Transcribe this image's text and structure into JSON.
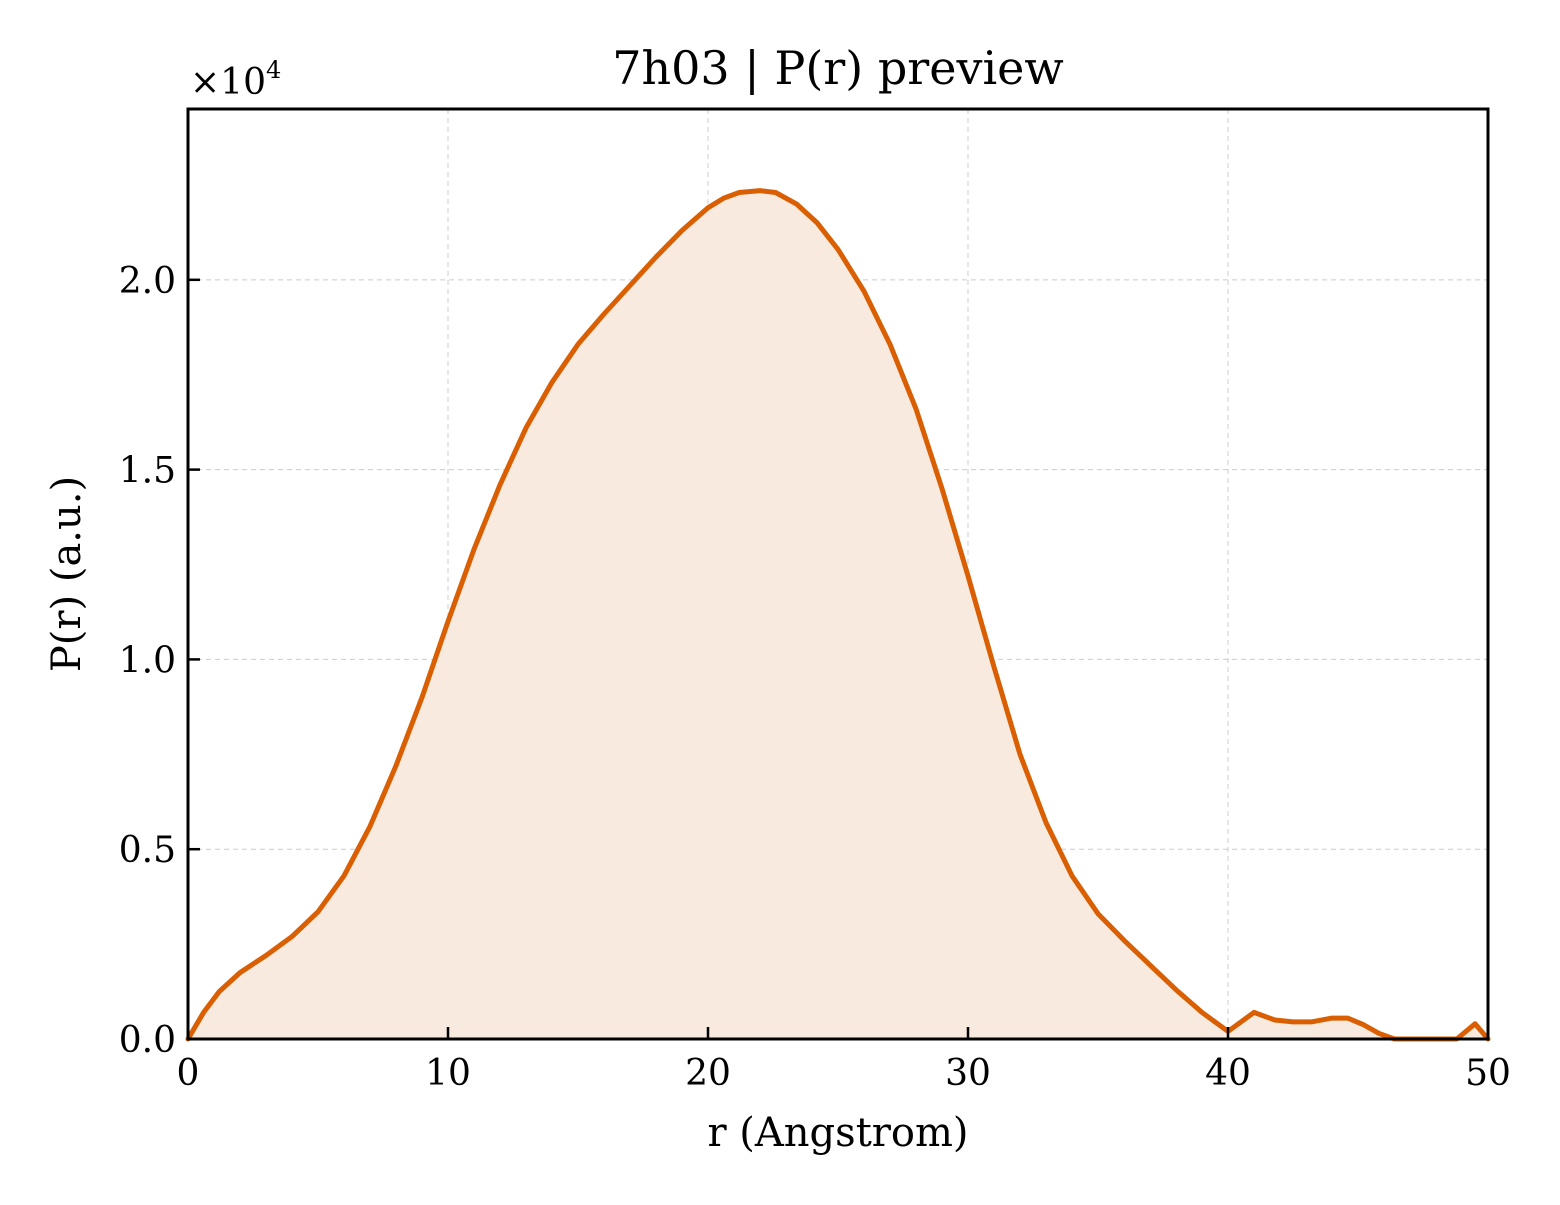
{
  "chart_data": {
    "type": "area",
    "title": "7h03 | P(r) preview",
    "xlabel": "r (Angstrom)",
    "ylabel": "P(r) (a.u.)",
    "y_multiplier_text": "×10",
    "y_multiplier_exponent": "4",
    "xlim": [
      0,
      50
    ],
    "ylim": [
      0,
      24500
    ],
    "grid": true,
    "line_color": "#d95f02",
    "fill_color": "#f9eadf",
    "x_ticks": [
      {
        "value": 0,
        "label": "0"
      },
      {
        "value": 10,
        "label": "10"
      },
      {
        "value": 20,
        "label": "20"
      },
      {
        "value": 30,
        "label": "30"
      },
      {
        "value": 40,
        "label": "40"
      },
      {
        "value": 50,
        "label": "50"
      }
    ],
    "y_ticks": [
      {
        "value": 0,
        "label": "0.0"
      },
      {
        "value": 5000,
        "label": "0.5"
      },
      {
        "value": 10000,
        "label": "1.0"
      },
      {
        "value": 15000,
        "label": "1.5"
      },
      {
        "value": 20000,
        "label": "2.0"
      }
    ],
    "series": [
      {
        "x": [
          0,
          0.6,
          1.2,
          2,
          3,
          4,
          5,
          6,
          7,
          8,
          9,
          10,
          11,
          12,
          13,
          14,
          15,
          16,
          17,
          18,
          19,
          20,
          20.6,
          21.2,
          22,
          22.6,
          23.4,
          24.2,
          25,
          26,
          27,
          28,
          29,
          30,
          31,
          32,
          33,
          34,
          35,
          36,
          37,
          38,
          39,
          40,
          41,
          41.8,
          42.5,
          43.2,
          44,
          44.6,
          45.2,
          45.8,
          46.4,
          47,
          48,
          48.8,
          49.5,
          50
        ],
        "y": [
          0,
          700,
          1250,
          1750,
          2200,
          2700,
          3350,
          4300,
          5600,
          7200,
          9000,
          11000,
          12900,
          14600,
          16100,
          17300,
          18300,
          19100,
          19850,
          20600,
          21300,
          21900,
          22150,
          22300,
          22350,
          22300,
          22000,
          21500,
          20800,
          19700,
          18300,
          16600,
          14500,
          12200,
          9800,
          7500,
          5700,
          4300,
          3300,
          2600,
          1950,
          1300,
          700,
          200,
          700,
          500,
          450,
          450,
          550,
          550,
          380,
          150,
          0,
          0,
          0,
          0,
          400,
          0
        ]
      }
    ]
  }
}
